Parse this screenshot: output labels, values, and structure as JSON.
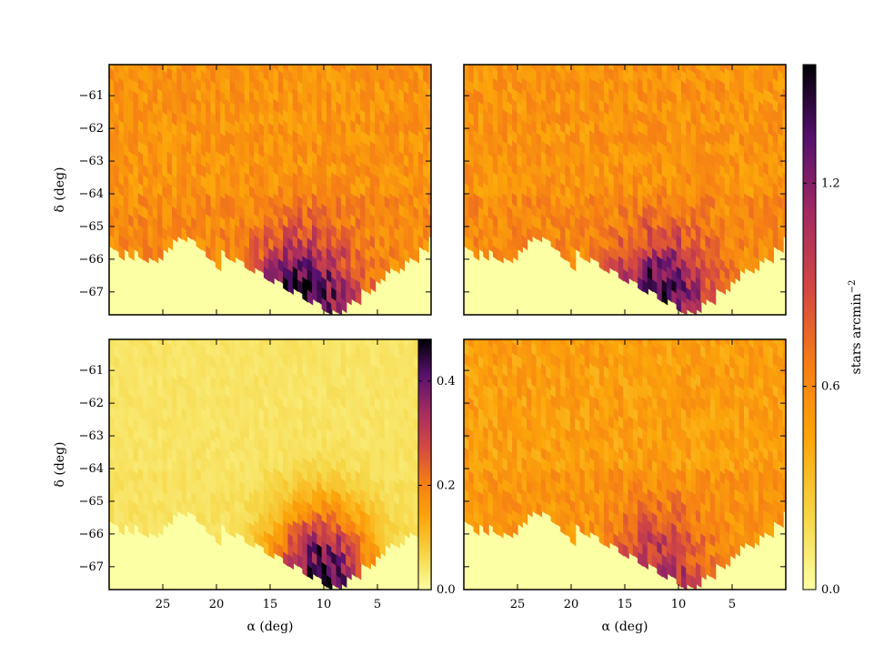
{
  "chart_data": [
    {
      "type": "heatmap",
      "panel": "top-left",
      "ylabel": "δ (deg)",
      "xlabel": "",
      "xlim": [
        30,
        0
      ],
      "ylim": [
        -67.7,
        -60.05
      ],
      "xticks": [],
      "yticks": [
        -61,
        -62,
        -63,
        -64,
        -65,
        -66,
        -67
      ],
      "clim": [
        0.0,
        1.55
      ],
      "colorbar": "right-shared",
      "features": {
        "blob_center": [
          12.0,
          -67.3
        ],
        "blob_peak": 1.55,
        "extent_note": "empty region below diagonal edge from (30,-65.8) to (9,-67.7)"
      }
    },
    {
      "type": "heatmap",
      "panel": "top-right",
      "ylabel": "",
      "xlabel": "",
      "xlim": [
        30,
        0
      ],
      "ylim": [
        -67.7,
        -60.05
      ],
      "xticks": [],
      "yticks": [],
      "clim": [
        0.0,
        1.55
      ],
      "colorbar": "right-shared",
      "features": {
        "blob_center": [
          12.0,
          -67.3
        ],
        "blob_peak": 1.45
      }
    },
    {
      "type": "heatmap",
      "panel": "bottom-left",
      "ylabel": "δ (deg)",
      "xlabel": "α (deg)",
      "xlim": [
        30,
        0
      ],
      "ylim": [
        -67.7,
        -60.05
      ],
      "xticks": [
        25,
        20,
        15,
        10,
        5
      ],
      "yticks": [
        -61,
        -62,
        -63,
        -64,
        -65,
        -66,
        -67
      ],
      "clim": [
        0.0,
        0.48
      ],
      "colorbar": "inset-right",
      "colorbar_ticks": [
        0.0,
        0.2,
        0.4
      ],
      "features": {
        "blob_center": [
          10.5,
          -67.3
        ],
        "blob_peak": 0.45
      }
    },
    {
      "type": "heatmap",
      "panel": "bottom-right",
      "ylabel": "",
      "xlabel": "α (deg)",
      "xlim": [
        30,
        0
      ],
      "ylim": [
        -67.7,
        -60.05
      ],
      "xticks": [
        25,
        20,
        15,
        10,
        5
      ],
      "yticks": [],
      "clim": [
        0.0,
        1.55
      ],
      "colorbar": "right-shared",
      "features": {
        "blob_center": [
          12.0,
          -67.3
        ],
        "blob_peak": 1.1
      }
    }
  ],
  "colorbar": {
    "label": "stars arcmin",
    "label_exponent": "−2",
    "ticks": [
      0.0,
      0.6,
      1.2
    ],
    "range": [
      0.0,
      1.55
    ],
    "colormap": "inferno_r"
  },
  "inset_colorbar": {
    "ticks": [
      0.0,
      0.2,
      0.4
    ],
    "range": [
      0.0,
      0.48
    ],
    "colormap": "inferno_r"
  },
  "colors": {
    "low": "#fcffa4",
    "mid": "#f98c0a",
    "high": "#000004"
  }
}
